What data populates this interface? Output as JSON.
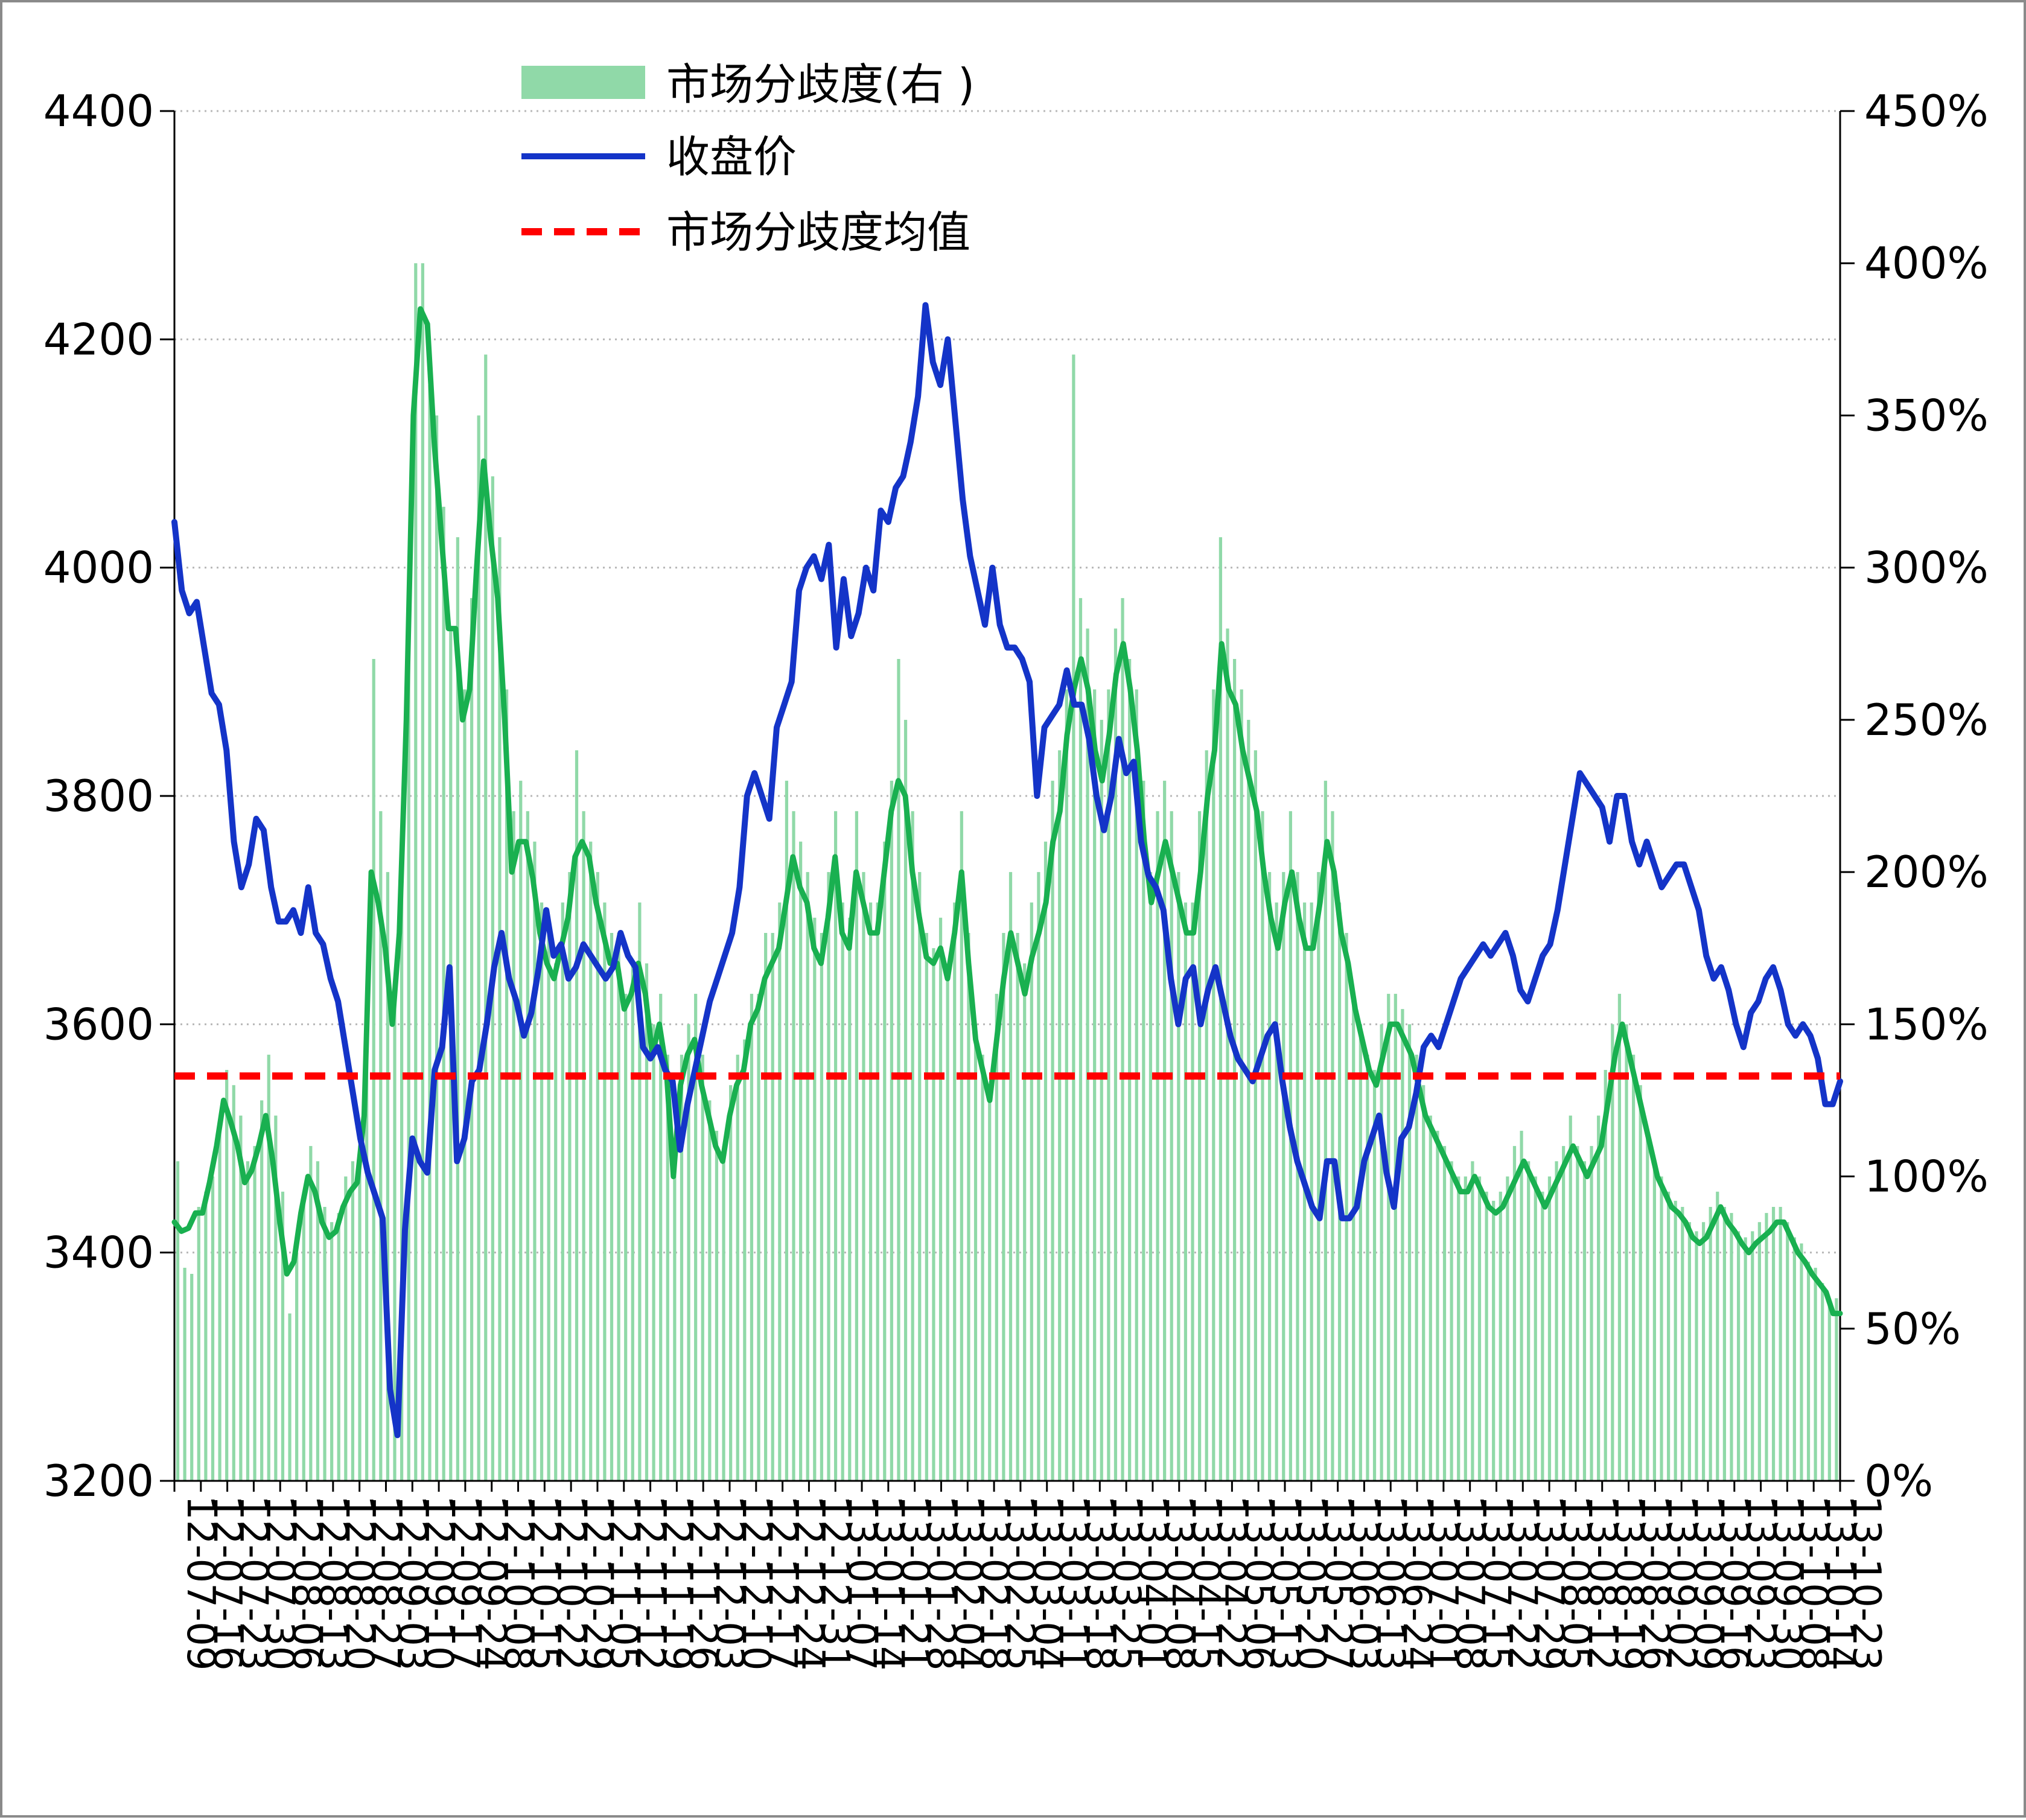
{
  "chart_data": {
    "type": "bar+line",
    "title": "",
    "xlabel": "",
    "ylabel_left": "",
    "ylabel_right": "",
    "left_axis": {
      "min": 3200,
      "max": 4400,
      "ticks": [
        3200,
        3400,
        3600,
        3800,
        4000,
        4200,
        4400
      ]
    },
    "right_axis": {
      "min": 0,
      "max": 4.5,
      "ticks": [
        "0%",
        "50%",
        "100%",
        "150%",
        "200%",
        "250%",
        "300%",
        "350%",
        "400%",
        "450%"
      ]
    },
    "grid": "horizontal-dotted",
    "legend_position": "top-center",
    "legend": [
      {
        "key": "bars",
        "label": "市场分歧度(右 )",
        "color": "#90d9a8",
        "kind": "bar"
      },
      {
        "key": "close",
        "label": "收盘价",
        "color": "#1434c8",
        "kind": "line"
      },
      {
        "key": "mean",
        "label": "市场分歧度均值",
        "color": "#ff0000",
        "kind": "dashed"
      }
    ],
    "x_tick_labels": [
      "12-07-09",
      "12-07-16",
      "12-07-23",
      "12-07-30",
      "12-08-06",
      "12-08-13",
      "12-08-20",
      "12-08-27",
      "12-09-03",
      "12-09-10",
      "12-09-17",
      "12-09-24",
      "12-10-08",
      "12-10-15",
      "12-10-22",
      "12-10-29",
      "12-11-05",
      "12-11-12",
      "12-11-19",
      "12-11-26",
      "12-12-03",
      "12-12-10",
      "12-12-17",
      "12-12-24",
      "12-12-31",
      "13-01-07",
      "13-01-14",
      "13-01-21",
      "13-01-28",
      "13-02-04",
      "13-02-18",
      "13-02-25",
      "13-03-04",
      "13-03-11",
      "13-03-18",
      "13-03-25",
      "13-04-01",
      "13-04-08",
      "13-04-15",
      "13-04-22",
      "13-05-06",
      "13-05-13",
      "13-05-20",
      "13-05-27",
      "13-06-03",
      "13-06-13",
      "13-06-24",
      "13-07-01",
      "13-07-08",
      "13-07-15",
      "13-07-22",
      "13-07-29",
      "13-08-05",
      "13-08-12",
      "13-08-19",
      "13-08-26",
      "13-09-02",
      "13-09-09",
      "13-09-16",
      "13-09-23",
      "13-09-30",
      "13-10-08",
      "13-10-14",
      "13-10-23"
    ],
    "series": [
      {
        "name": "收盘价",
        "axis": "left",
        "values": [
          4040,
          3980,
          3960,
          3970,
          3930,
          3890,
          3880,
          3840,
          3760,
          3720,
          3740,
          3780,
          3770,
          3720,
          3690,
          3690,
          3700,
          3680,
          3720,
          3680,
          3670,
          3640,
          3620,
          3580,
          3540,
          3500,
          3470,
          3450,
          3430,
          3280,
          3240,
          3420,
          3500,
          3480,
          3470,
          3560,
          3580,
          3650,
          3480,
          3500,
          3550,
          3560,
          3600,
          3650,
          3680,
          3640,
          3620,
          3590,
          3610,
          3650,
          3700,
          3660,
          3670,
          3640,
          3650,
          3670,
          3660,
          3650,
          3640,
          3650,
          3680,
          3660,
          3650,
          3580,
          3570,
          3580,
          3560,
          3550,
          3490,
          3530,
          3560,
          3590,
          3620,
          3640,
          3660,
          3680,
          3720,
          3800,
          3820,
          3800,
          3780,
          3860,
          3880,
          3900,
          3980,
          4000,
          4010,
          3990,
          4020,
          3930,
          3990,
          3940,
          3960,
          4000,
          3980,
          4050,
          4040,
          4070,
          4080,
          4110,
          4150,
          4230,
          4180,
          4160,
          4200,
          4130,
          4060,
          4010,
          3980,
          3950,
          4000,
          3950,
          3930,
          3930,
          3920,
          3900,
          3800,
          3860,
          3870,
          3880,
          3910,
          3880,
          3880,
          3850,
          3800,
          3770,
          3800,
          3850,
          3820,
          3830,
          3760,
          3730,
          3720,
          3700,
          3640,
          3600,
          3640,
          3650,
          3600,
          3630,
          3650,
          3620,
          3590,
          3570,
          3560,
          3550,
          3570,
          3590,
          3600,
          3550,
          3510,
          3480,
          3460,
          3440,
          3430,
          3480,
          3480,
          3430,
          3430,
          3440,
          3480,
          3500,
          3520,
          3470,
          3440,
          3500,
          3510,
          3540,
          3580,
          3590,
          3580,
          3600,
          3620,
          3640,
          3650,
          3660,
          3670,
          3660,
          3670,
          3680,
          3660,
          3630,
          3620,
          3640,
          3660,
          3670,
          3700,
          3740,
          3780,
          3820,
          3810,
          3800,
          3790,
          3760,
          3800,
          3800,
          3760,
          3740,
          3760,
          3740,
          3720,
          3730,
          3740,
          3740,
          3720,
          3700,
          3660,
          3640,
          3650,
          3630,
          3600,
          3580,
          3610,
          3620,
          3640,
          3650,
          3630,
          3600,
          3590,
          3600,
          3590,
          3570,
          3530,
          3530,
          3550
        ]
      },
      {
        "name": "市场分歧度(右 )",
        "axis": "right",
        "kind": "line",
        "values": [
          0.85,
          0.82,
          0.83,
          0.88,
          0.88,
          0.98,
          1.1,
          1.25,
          1.18,
          1.1,
          0.98,
          1.02,
          1.1,
          1.2,
          1.05,
          0.85,
          0.68,
          0.72,
          0.88,
          1.0,
          0.95,
          0.85,
          0.8,
          0.82,
          0.9,
          0.95,
          0.98,
          1.2,
          2.0,
          1.9,
          1.75,
          1.5,
          1.8,
          2.5,
          3.5,
          3.85,
          3.8,
          3.4,
          3.1,
          2.8,
          2.8,
          2.5,
          2.6,
          3.0,
          3.35,
          3.1,
          2.9,
          2.5,
          2.0,
          2.1,
          2.1,
          1.98,
          1.8,
          1.7,
          1.65,
          1.75,
          1.85,
          2.05,
          2.1,
          2.05,
          1.9,
          1.8,
          1.7,
          1.7,
          1.55,
          1.6,
          1.7,
          1.6,
          1.4,
          1.5,
          1.35,
          1.0,
          1.3,
          1.4,
          1.45,
          1.3,
          1.2,
          1.1,
          1.05,
          1.2,
          1.3,
          1.35,
          1.5,
          1.55,
          1.65,
          1.7,
          1.75,
          1.9,
          2.05,
          1.95,
          1.9,
          1.75,
          1.7,
          1.85,
          2.05,
          1.8,
          1.75,
          2.0,
          1.9,
          1.8,
          1.8,
          2.0,
          2.2,
          2.3,
          2.25,
          2.0,
          1.85,
          1.72,
          1.7,
          1.75,
          1.65,
          1.8,
          2.0,
          1.7,
          1.45,
          1.35,
          1.25,
          1.45,
          1.65,
          1.8,
          1.7,
          1.6,
          1.72,
          1.8,
          1.9,
          2.1,
          2.2,
          2.45,
          2.6,
          2.7,
          2.6,
          2.4,
          2.3,
          2.45,
          2.65,
          2.75,
          2.6,
          2.4,
          2.1,
          1.9,
          2.0,
          2.1,
          2.0,
          1.9,
          1.8,
          1.8,
          2.0,
          2.25,
          2.4,
          2.75,
          2.6,
          2.55,
          2.4,
          2.3,
          2.2,
          2.0,
          1.85,
          1.75,
          1.9,
          2.0,
          1.85,
          1.75,
          1.75,
          1.9,
          2.1,
          2.0,
          1.8,
          1.7,
          1.55,
          1.45,
          1.35,
          1.3,
          1.4,
          1.5,
          1.5,
          1.45,
          1.4,
          1.3,
          1.2,
          1.15,
          1.1,
          1.05,
          1.0,
          0.95,
          0.95,
          1.0,
          0.95,
          0.9,
          0.88,
          0.9,
          0.95,
          1.0,
          1.05,
          1.0,
          0.95,
          0.9,
          0.95,
          1.0,
          1.05,
          1.1,
          1.05,
          1.0,
          1.05,
          1.1,
          1.25,
          1.4,
          1.5,
          1.4,
          1.3,
          1.2,
          1.1,
          1.0,
          0.95,
          0.9,
          0.88,
          0.85,
          0.8,
          0.78,
          0.8,
          0.85,
          0.9,
          0.85,
          0.82,
          0.78,
          0.75,
          0.78,
          0.8,
          0.82,
          0.85,
          0.85,
          0.8,
          0.75,
          0.72,
          0.68,
          0.65,
          0.62,
          0.55,
          0.55
        ]
      },
      {
        "name": "市场分歧度均值",
        "axis": "right",
        "kind": "constant",
        "value": 1.33
      }
    ],
    "bars": {
      "name": "市场分歧度(右 )",
      "axis": "right",
      "note_values": "daily values drawn as thin vertical bars",
      "values": [
        1.05,
        0.7,
        0.68,
        0.9,
        0.95,
        1.0,
        1.15,
        1.35,
        1.3,
        1.2,
        1.05,
        1.1,
        1.25,
        1.4,
        1.2,
        0.95,
        0.55,
        0.75,
        0.95,
        1.1,
        1.05,
        0.9,
        0.85,
        0.88,
        1.0,
        1.05,
        1.1,
        1.5,
        2.7,
        2.2,
        2.0,
        1.6,
        2.1,
        2.9,
        4.0,
        4.0,
        3.6,
        3.5,
        3.2,
        2.8,
        3.1,
        2.6,
        2.9,
        3.5,
        3.7,
        3.3,
        3.1,
        2.6,
        2.2,
        2.3,
        2.2,
        2.1,
        1.9,
        1.8,
        1.7,
        1.9,
        2.0,
        2.4,
        2.2,
        2.1,
        2.0,
        1.9,
        1.8,
        1.8,
        1.6,
        1.7,
        1.9,
        1.7,
        1.5,
        1.6,
        1.4,
        1.0,
        1.4,
        1.5,
        1.6,
        1.4,
        1.25,
        1.15,
        1.1,
        1.3,
        1.4,
        1.45,
        1.6,
        1.6,
        1.8,
        1.8,
        1.9,
        2.3,
        2.2,
        2.1,
        2.0,
        1.85,
        1.8,
        2.0,
        2.2,
        1.9,
        1.85,
        2.2,
        2.0,
        1.9,
        1.9,
        2.1,
        2.3,
        2.7,
        2.5,
        2.2,
        2.0,
        1.8,
        1.75,
        1.85,
        1.7,
        1.9,
        2.2,
        1.8,
        1.5,
        1.4,
        1.3,
        1.6,
        1.8,
        2.0,
        1.8,
        1.7,
        1.9,
        2.0,
        2.1,
        2.3,
        2.4,
        2.6,
        3.7,
        2.9,
        2.8,
        2.6,
        2.5,
        2.6,
        2.8,
        2.9,
        2.7,
        2.6,
        2.3,
        2.0,
        2.2,
        2.3,
        2.2,
        2.0,
        1.9,
        1.9,
        2.2,
        2.4,
        2.6,
        3.1,
        2.8,
        2.7,
        2.6,
        2.5,
        2.4,
        2.2,
        2.0,
        1.9,
        2.0,
        2.2,
        2.0,
        1.9,
        1.9,
        2.0,
        2.3,
        2.2,
        1.9,
        1.8,
        1.6,
        1.5,
        1.4,
        1.35,
        1.5,
        1.6,
        1.6,
        1.55,
        1.5,
        1.4,
        1.3,
        1.2,
        1.15,
        1.1,
        1.05,
        1.0,
        1.0,
        1.05,
        1.0,
        0.95,
        0.92,
        0.95,
        1.0,
        1.1,
        1.15,
        1.05,
        1.0,
        0.95,
        1.0,
        1.05,
        1.1,
        1.2,
        1.1,
        1.05,
        1.1,
        1.2,
        1.35,
        1.5,
        1.6,
        1.5,
        1.4,
        1.3,
        1.15,
        1.05,
        1.0,
        0.95,
        0.92,
        0.9,
        0.85,
        0.82,
        0.85,
        0.9,
        0.95,
        0.9,
        0.88,
        0.82,
        0.8,
        0.82,
        0.85,
        0.88,
        0.9,
        0.9,
        0.85,
        0.8,
        0.78,
        0.72,
        0.7,
        0.65,
        0.6,
        0.6
      ]
    }
  }
}
